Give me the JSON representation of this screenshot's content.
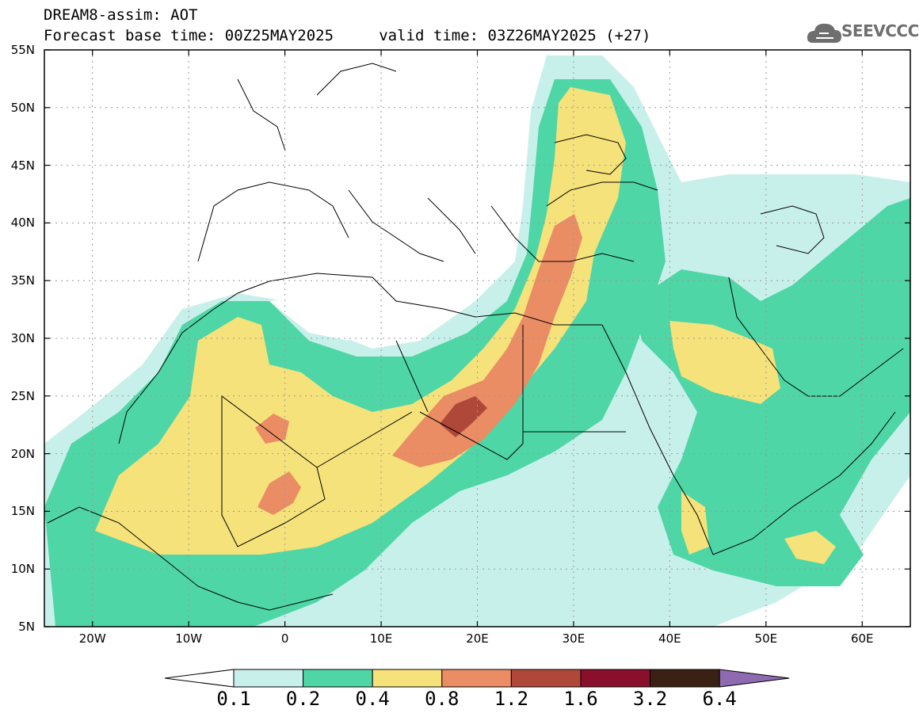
{
  "header": {
    "title": "DREAM8-assim: AOT",
    "subtitle": "Forecast base time: 00Z25MAY2025     valid time: 03Z26MAY2025 (+27)"
  },
  "logo": {
    "text": "SEEVCCC",
    "icon": "cloud-icon"
  },
  "map": {
    "lat_range": [
      5,
      55
    ],
    "lon_range": [
      -25,
      65
    ],
    "lat_labels": [
      "55N",
      "50N",
      "45N",
      "40N",
      "35N",
      "30N",
      "25N",
      "20N",
      "15N",
      "10N",
      "5N"
    ],
    "lon_labels": [
      "20W",
      "10W",
      "0",
      "10E",
      "20E",
      "30E",
      "40E",
      "50E",
      "60E"
    ]
  },
  "legend": {
    "labels": [
      "0.1",
      "0.2",
      "0.4",
      "0.8",
      "1.2",
      "1.6",
      "3.2",
      "6.4"
    ],
    "colors": [
      "#c8f0ea",
      "#4fd6a6",
      "#f6e27a",
      "#ea8c64",
      "#b0483a",
      "#8a0f2c",
      "#3b2113",
      "#8e6ab0"
    ]
  }
}
